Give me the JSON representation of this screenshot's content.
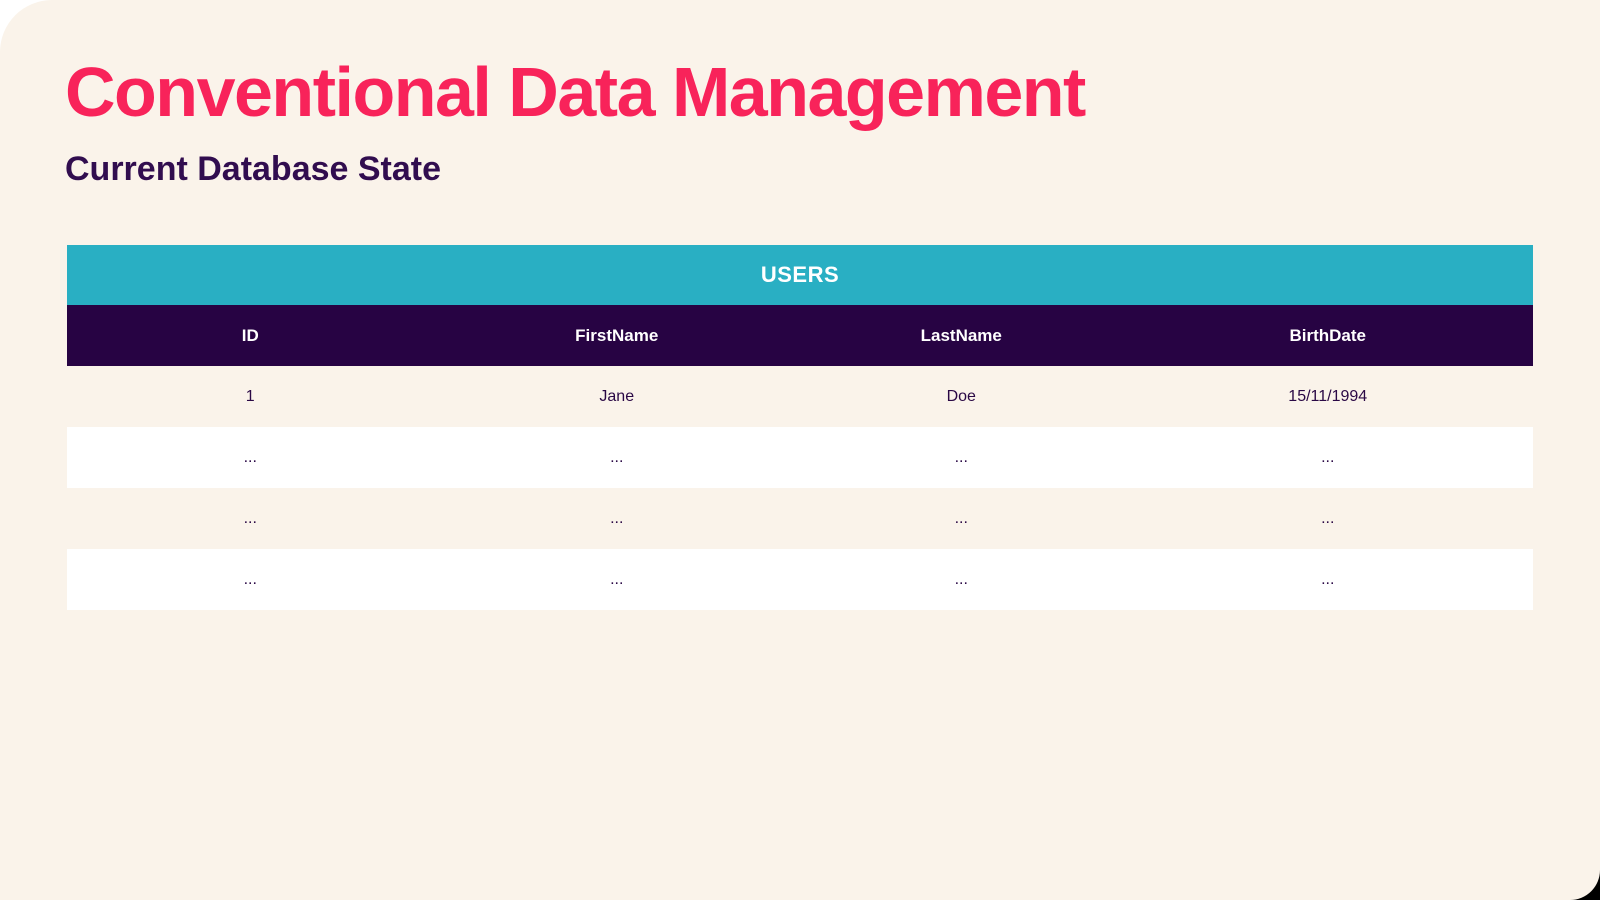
{
  "slide": {
    "title": "Conventional Data Management",
    "subtitle": "Current Database State"
  },
  "table": {
    "name": "USERS",
    "columns": [
      "ID",
      "FirstName",
      "LastName",
      "BirthDate"
    ],
    "rows": [
      [
        "1",
        "Jane",
        "Doe",
        "15/11/1994"
      ],
      [
        "...",
        "...",
        "...",
        "..."
      ],
      [
        "...",
        "...",
        "...",
        "..."
      ],
      [
        "...",
        "...",
        "...",
        "..."
      ]
    ]
  },
  "colors": {
    "accent_pink": "#F8235A",
    "subtitle_purple": "#310D4F",
    "header_purple": "#270343",
    "teal": "#29AFC3",
    "slide_background": "#FAF3EA",
    "row_white": "#FFFFFF",
    "cell_text": "#2A0845"
  }
}
